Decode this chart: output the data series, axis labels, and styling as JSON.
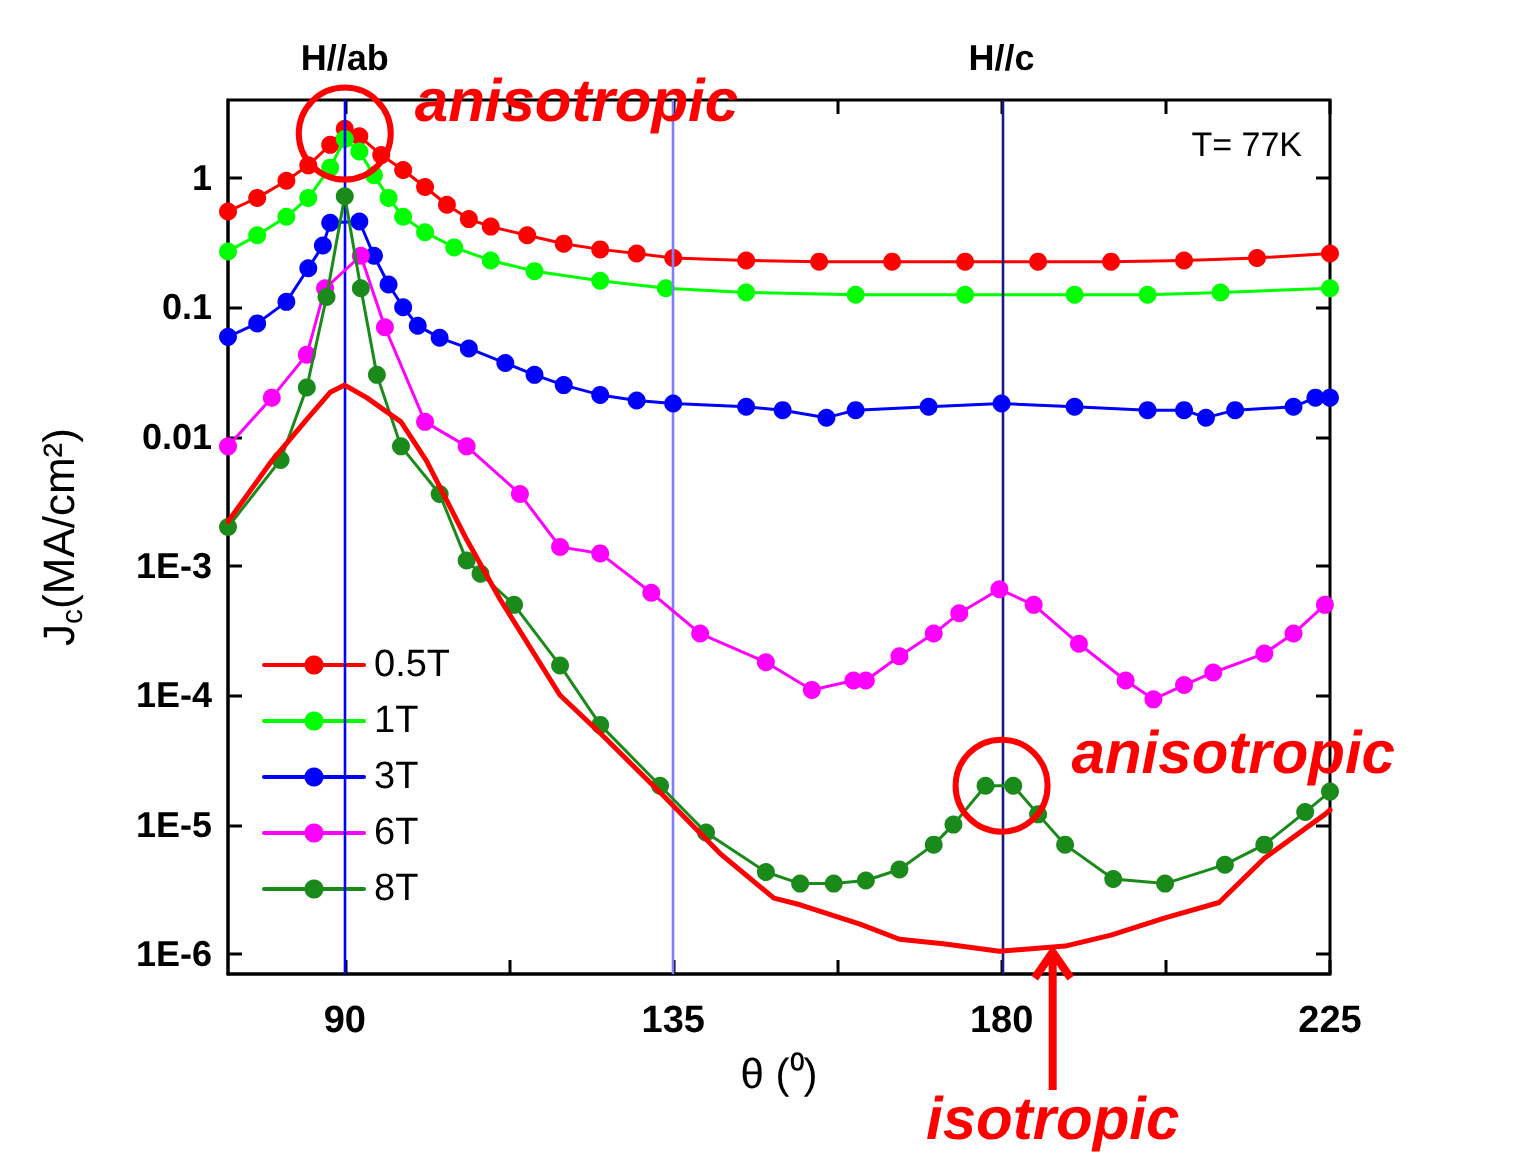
{
  "chart_data": {
    "type": "line",
    "xlabel": "θ (⁰)",
    "ylabel": "J$_{c}$(MA/cm²)",
    "log": "y",
    "grid": false,
    "legend": "bottom left",
    "marker": "circle",
    "xlim": [
      74,
      225
    ],
    "xticks": [
      90,
      {
        "value": 112.5,
        "label": null
      },
      135,
      {
        "value": 157.5,
        "label": null
      },
      180,
      {
        "value": 202.5,
        "label": null
      },
      225
    ],
    "ylim": [
      7e-07,
      4
    ],
    "yticks": [
      {
        "value": 1e-06,
        "label": "1E-6"
      },
      {
        "value": 1e-05,
        "label": "1E-5"
      },
      {
        "value": 0.0001,
        "label": "1E-4"
      },
      {
        "value": 0.001,
        "label": "1E-3"
      },
      0.01,
      0.1,
      1
    ],
    "ref_lines": [
      {
        "axis": "x",
        "value": 90,
        "label": "H//ab",
        "color": "#0000ff"
      },
      {
        "axis": "x",
        "value": 135,
        "label": null,
        "color": "#8080ff"
      },
      {
        "axis": "x",
        "value": 180,
        "label": "H//c",
        "color": "#1a1a80"
      }
    ],
    "annotations": [
      "T= 77K",
      {
        "text": "anisotropic",
        "x": 90,
        "y": 2.2
      },
      {
        "text": "anisotropic",
        "x": 180,
        "y": 2e-05
      },
      {
        "text": "isotropic",
        "x": 187,
        "y": 1.15e-06
      }
    ],
    "series": [
      {
        "name": "0.5T",
        "color": "#ff0000",
        "x": [
          74,
          78,
          82,
          85,
          88,
          90,
          92,
          95,
          98,
          101,
          104,
          107,
          110,
          115,
          120,
          125,
          130,
          135,
          145,
          155,
          165,
          175,
          185,
          195,
          205,
          215,
          225
        ],
        "values": [
          0.55,
          0.7,
          0.95,
          1.25,
          1.8,
          2.4,
          2.1,
          1.5,
          1.15,
          0.85,
          0.62,
          0.48,
          0.42,
          0.36,
          0.31,
          0.28,
          0.26,
          0.24,
          0.23,
          0.225,
          0.225,
          0.225,
          0.225,
          0.225,
          0.23,
          0.24,
          0.26
        ]
      },
      {
        "name": "1T",
        "color": "#00ff00",
        "x": [
          74,
          78,
          82,
          85,
          88,
          90,
          92,
          94,
          96,
          98,
          101,
          105,
          110,
          116,
          125,
          134,
          145,
          160,
          175,
          190,
          200,
          210,
          225
        ],
        "values": [
          0.27,
          0.36,
          0.5,
          0.7,
          1.2,
          2.0,
          1.6,
          1.05,
          0.7,
          0.5,
          0.38,
          0.29,
          0.23,
          0.19,
          0.16,
          0.14,
          0.13,
          0.125,
          0.125,
          0.125,
          0.125,
          0.13,
          0.14
        ]
      },
      {
        "name": "3T",
        "color": "#0000ff",
        "x": [
          74,
          78,
          82,
          85,
          87,
          88,
          89,
          90,
          91,
          92,
          94,
          96,
          98,
          100,
          103,
          107,
          112,
          116,
          120,
          125,
          130,
          135,
          145,
          150,
          156,
          160,
          170,
          180,
          190,
          200,
          205,
          208,
          212,
          220,
          223,
          225
        ],
        "values": [
          0.059,
          0.075,
          0.11,
          0.2,
          0.3,
          0.45,
          null,
          null,
          null,
          0.46,
          0.25,
          0.15,
          0.1,
          0.072,
          0.058,
          0.048,
          0.037,
          0.03,
          0.025,
          0.021,
          0.019,
          0.018,
          0.017,
          0.016,
          0.014,
          0.016,
          0.017,
          0.018,
          0.017,
          0.016,
          0.016,
          0.014,
          0.016,
          0.017,
          0.02,
          0.02
        ]
      },
      {
        "name": "6T",
        "color": "#ff00ff",
        "x": [
          74,
          80,
          84.8,
          87.3,
          90,
          92.2,
          95.5,
          101,
          106.7,
          114,
          119.5,
          125,
          132,
          138.7,
          147.7,
          154,
          159.7,
          161.4,
          166,
          170.7,
          174.2,
          179.7,
          184.4,
          190.6,
          197,
          200.8,
          205,
          209,
          216,
          220,
          224.3
        ],
        "values": [
          0.0084,
          0.02,
          0.043,
          0.14,
          null,
          0.25,
          0.07,
          0.013,
          0.0084,
          0.0036,
          0.0014,
          0.00125,
          0.00062,
          0.0003,
          0.00018,
          0.00011,
          0.00013,
          0.00013,
          0.0002,
          0.0003,
          0.00043,
          0.00066,
          0.0005,
          0.00025,
          0.00013,
          9.3e-05,
          0.00012,
          0.00015,
          0.00021,
          0.0003,
          0.0005
        ]
      },
      {
        "name": "8T",
        "color": "#1a8a1a",
        "x": [
          74,
          81.2,
          84.8,
          87.5,
          90,
          92.2,
          94.4,
          97.7,
          103,
          106.7,
          108.6,
          113.2,
          119.5,
          125,
          133.2,
          139.5,
          147.7,
          152.4,
          157,
          161.4,
          166,
          170.7,
          173.4,
          177.8,
          181.6,
          185,
          188.7,
          195.3,
          202.4,
          210.6,
          216,
          221.6,
          225
        ],
        "values": [
          0.002,
          0.0066,
          0.024,
          0.12,
          0.72,
          0.14,
          0.03,
          0.0084,
          0.0036,
          0.0011,
          0.00087,
          0.0005,
          0.00017,
          5.9e-05,
          2e-05,
          8.7e-06,
          4.3e-06,
          3.5e-06,
          3.5e-06,
          3.7e-06,
          4.5e-06,
          7e-06,
          1e-05,
          2e-05,
          2e-05,
          1.2e-05,
          7e-06,
          3.8e-06,
          3.5e-06,
          4.9e-06,
          7e-06,
          1.25e-05,
          1.8e-05
        ]
      },
      {
        "color": "#ff0000",
        "marker": "none",
        "x": [
          74,
          80,
          85,
          88,
          90,
          93,
          97.7,
          101.2,
          106.7,
          111.3,
          119.5,
          125,
          134,
          141.4,
          148.8,
          152.4,
          160.6,
          166,
          172,
          179.7,
          188.7,
          195,
          202.4,
          209.8,
          216,
          224.3,
          225
        ],
        "values": [
          0.0022,
          0.0065,
          0.014,
          0.022,
          0.025,
          0.02,
          0.013,
          0.0065,
          0.0016,
          0.00055,
          0.0001,
          5.1e-05,
          1.6e-05,
          6e-06,
          2.7e-06,
          2.4e-06,
          1.7e-06,
          1.3e-06,
          1.2e-06,
          1.05e-06,
          1.15e-06,
          1.4e-06,
          1.9e-06,
          2.5e-06,
          5.5e-06,
          1.2e-05,
          1.3e-05
        ]
      }
    ]
  }
}
